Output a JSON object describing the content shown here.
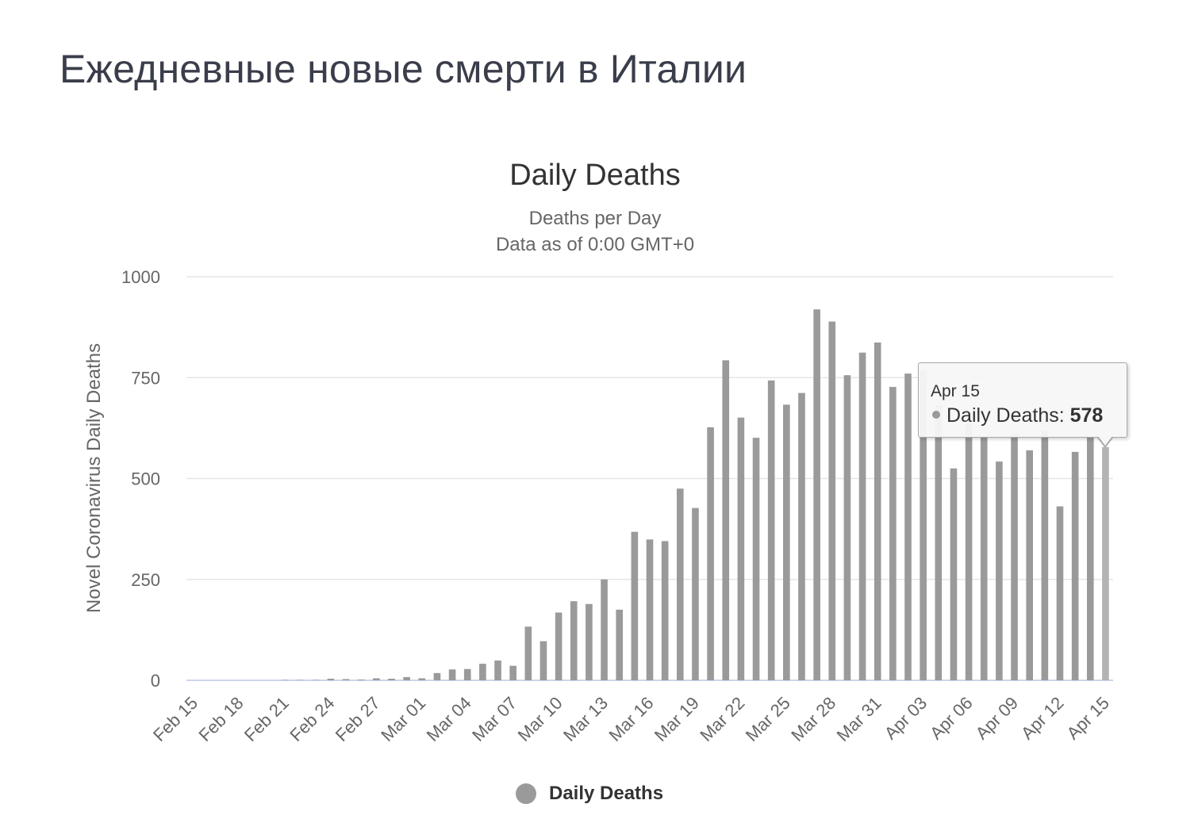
{
  "page": {
    "title": "Ежедневные новые смерти в Италии"
  },
  "chart_data": {
    "type": "bar",
    "title": "Daily Deaths",
    "subtitle": [
      "Deaths per Day",
      "Data as of 0:00 GMT+0"
    ],
    "xlabel": "",
    "ylabel": "Novel Coronavirus Daily Deaths",
    "ylim": [
      0,
      1000
    ],
    "yticks": [
      0,
      250,
      500,
      750,
      1000
    ],
    "grid": true,
    "legend_position": "bottom",
    "series_color": "#9a9a9a",
    "hover_color": "#b3b3b3",
    "categories": [
      "Feb 15",
      "Feb 16",
      "Feb 17",
      "Feb 18",
      "Feb 19",
      "Feb 20",
      "Feb 21",
      "Feb 22",
      "Feb 23",
      "Feb 24",
      "Feb 25",
      "Feb 26",
      "Feb 27",
      "Feb 28",
      "Feb 29",
      "Mar 01",
      "Mar 02",
      "Mar 03",
      "Mar 04",
      "Mar 05",
      "Mar 06",
      "Mar 07",
      "Mar 08",
      "Mar 09",
      "Mar 10",
      "Mar 11",
      "Mar 12",
      "Mar 13",
      "Mar 14",
      "Mar 15",
      "Mar 16",
      "Mar 17",
      "Mar 18",
      "Mar 19",
      "Mar 20",
      "Mar 21",
      "Mar 22",
      "Mar 23",
      "Mar 24",
      "Mar 25",
      "Mar 26",
      "Mar 27",
      "Mar 28",
      "Mar 29",
      "Mar 30",
      "Mar 31",
      "Apr 01",
      "Apr 02",
      "Apr 03",
      "Apr 04",
      "Apr 05",
      "Apr 06",
      "Apr 07",
      "Apr 08",
      "Apr 09",
      "Apr 10",
      "Apr 11",
      "Apr 12",
      "Apr 13",
      "Apr 14",
      "Apr 15"
    ],
    "tick_labels": [
      "Feb 15",
      "Feb 18",
      "Feb 21",
      "Feb 24",
      "Feb 27",
      "Mar 01",
      "Mar 04",
      "Mar 07",
      "Mar 10",
      "Mar 13",
      "Mar 16",
      "Mar 19",
      "Mar 22",
      "Mar 25",
      "Mar 28",
      "Mar 31",
      "Apr 03",
      "Apr 06",
      "Apr 09",
      "Apr 12",
      "Apr 15"
    ],
    "series": [
      {
        "name": "Daily Deaths",
        "values": [
          0,
          0,
          0,
          0,
          0,
          0,
          1,
          1,
          1,
          4,
          3,
          2,
          5,
          4,
          8,
          5,
          18,
          27,
          28,
          41,
          49,
          36,
          133,
          97,
          168,
          196,
          189,
          250,
          175,
          368,
          349,
          345,
          475,
          427,
          627,
          793,
          651,
          601,
          743,
          683,
          712,
          919,
          889,
          756,
          812,
          837,
          727,
          760,
          766,
          681,
          525,
          636,
          604,
          542,
          610,
          570,
          619,
          431,
          566,
          602,
          578
        ]
      }
    ],
    "highlight_index": 60
  },
  "tooltip": {
    "date": "Apr 15",
    "series_label": "Daily Deaths: ",
    "value": "578"
  },
  "legend": {
    "label": "Daily Deaths"
  }
}
